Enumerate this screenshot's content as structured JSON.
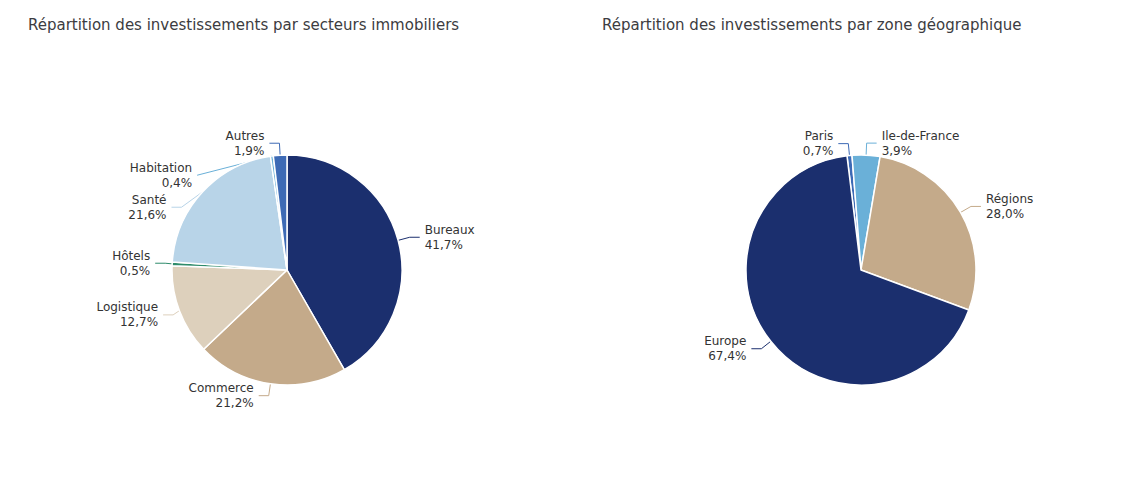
{
  "chart_data": [
    {
      "type": "pie",
      "title": "Répartition des investissements par secteurs immobiliers",
      "categories": [
        "Bureaux",
        "Commerce",
        "Logistique",
        "Hôtels",
        "Santé",
        "Habitation",
        "Autres"
      ],
      "values": [
        41.7,
        21.2,
        12.7,
        0.5,
        21.6,
        0.4,
        1.9
      ],
      "value_labels": [
        "41,7%",
        "21,2%",
        "12,7%",
        "0,5%",
        "21,6%",
        "0,4%",
        "1,9%"
      ],
      "colors": [
        "#1b2f6e",
        "#c4aa8a",
        "#ddd0bc",
        "#2e8b6b",
        "#b8d4e8",
        "#6ab0d8",
        "#3d6ab5"
      ],
      "data_labels": true
    },
    {
      "type": "pie",
      "title": "Répartition des investissements par zone géographique",
      "categories": [
        "Paris",
        "Ile-de-France",
        "Régions",
        "Europe"
      ],
      "values": [
        0.7,
        3.9,
        28.0,
        67.4
      ],
      "value_labels": [
        "0,7%",
        "3,9%",
        "28,0%",
        "67,4%"
      ],
      "colors": [
        "#3d6ab5",
        "#6ab0d8",
        "#c4aa8a",
        "#1b2f6e"
      ],
      "data_labels": true
    }
  ]
}
